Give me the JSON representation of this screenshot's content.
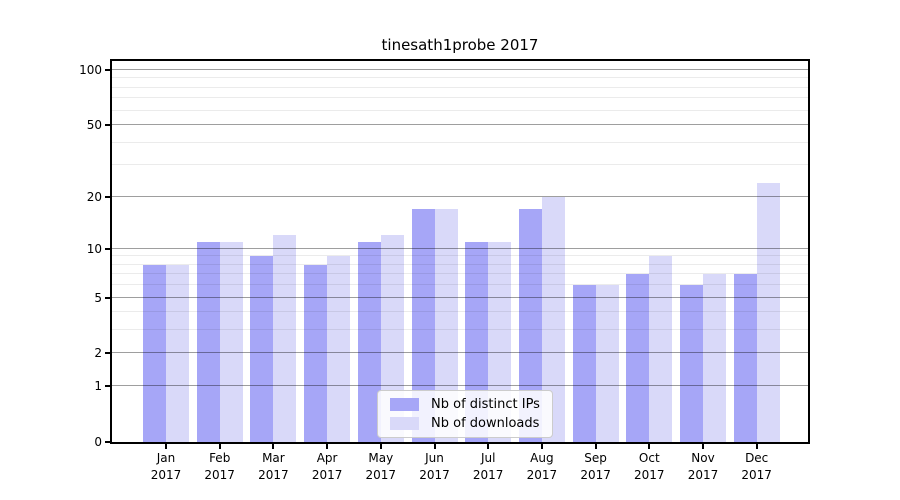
{
  "chart_data": {
    "type": "bar",
    "title": "tinesath1probe 2017",
    "categories": [
      "Jan 2017",
      "Feb 2017",
      "Mar 2017",
      "Apr 2017",
      "May 2017",
      "Jun 2017",
      "Jul 2017",
      "Aug 2017",
      "Sep 2017",
      "Oct 2017",
      "Nov 2017",
      "Dec 2017"
    ],
    "series": [
      {
        "name": "Nb of distinct IPs",
        "color": "#a6a6f7",
        "values": [
          8,
          11,
          9,
          8,
          11,
          17,
          11,
          17,
          6,
          7,
          6,
          7
        ]
      },
      {
        "name": "Nb of downloads",
        "color": "#d9d9f9",
        "values": [
          8,
          11,
          12,
          9,
          12,
          17,
          11,
          20,
          6,
          9,
          7,
          24
        ]
      }
    ],
    "y_scale": "log1p",
    "y_ticks_major": [
      0,
      1,
      2,
      5,
      10,
      20,
      50,
      100
    ],
    "y_ticks_minor": [
      3,
      4,
      6,
      7,
      8,
      9,
      30,
      40,
      60,
      70,
      80,
      90
    ],
    "ylim": [
      0,
      115
    ],
    "xlabel": "",
    "ylabel": "",
    "grid": "both",
    "legend_position": "lower center"
  }
}
